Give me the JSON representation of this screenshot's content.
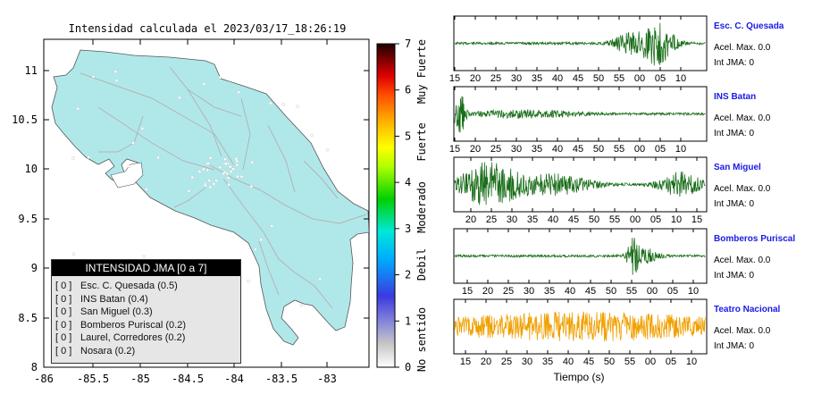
{
  "map": {
    "title": "Intensidad calculada el 2023/03/17_18:26:19",
    "x_ticks": [
      "-86",
      "-85.5",
      "-85",
      "-84.5",
      "-84",
      "-83.5",
      "-83"
    ],
    "y_ticks": [
      "11",
      "10.5",
      "10",
      "9.5",
      "9",
      "8.5",
      "8"
    ],
    "land_color": "#b0e8ea",
    "road_color": "#b3b3b3"
  },
  "colorbar": {
    "ticks": [
      "0",
      "1",
      "2",
      "3",
      "4",
      "5",
      "6",
      "7"
    ],
    "category_labels": [
      "No sentido",
      "Debil",
      "Moderado",
      "Fuerte",
      "Muy Fuerte"
    ]
  },
  "legend": {
    "title": "INTENSIDAD JMA [0 a 7]",
    "rows": [
      {
        "level": "[ 0 ]",
        "text": "Esc. C. Quesada (0.5)"
      },
      {
        "level": "[ 0 ]",
        "text": "INS Batan (0.4)"
      },
      {
        "level": "[ 0 ]",
        "text": "San Miguel (0.3)"
      },
      {
        "level": "[ 0 ]",
        "text": "Bomberos Puriscal (0.2)"
      },
      {
        "level": "[ 0 ]",
        "text": "Laurel, Corredores (0.2)"
      },
      {
        "level": "[ 0 ]",
        "text": "Nosara (0.2)"
      }
    ]
  },
  "waveforms": {
    "xlabel": "Tiempo (s)",
    "panels": [
      {
        "station": "Esc. C. Quesada",
        "acel": "Acel. Max. 0.0",
        "jma": "Int JMA: 0",
        "ticks": [
          "15",
          "20",
          "25",
          "30",
          "35",
          "40",
          "45",
          "50",
          "55",
          "00",
          "05",
          "10"
        ],
        "color": "#1a6e1a"
      },
      {
        "station": "INS Batan",
        "acel": "Acel. Max. 0.0",
        "jma": "Int JMA: 0",
        "ticks": [
          "15",
          "20",
          "25",
          "30",
          "35",
          "40",
          "45",
          "50",
          "55",
          "00",
          "05",
          "10"
        ],
        "color": "#1a6e1a"
      },
      {
        "station": "San Miguel",
        "acel": "Acel. Max. 0.0",
        "jma": "Int JMA: 0",
        "ticks": [
          "20",
          "25",
          "30",
          "35",
          "40",
          "45",
          "50",
          "55",
          "00",
          "05",
          "10",
          "15"
        ],
        "color": "#1a6e1a"
      },
      {
        "station": "Bomberos Puriscal",
        "acel": "Acel. Max. 0.0",
        "jma": "Int JMA: 0",
        "ticks": [
          "15",
          "20",
          "25",
          "30",
          "35",
          "40",
          "45",
          "50",
          "55",
          "00",
          "05",
          "10"
        ],
        "color": "#1a6e1a"
      },
      {
        "station": "Teatro Nacional",
        "acel": "Acel. Max. 0.0",
        "jma": "Int JMA: 0",
        "ticks": [
          "15",
          "20",
          "25",
          "30",
          "35",
          "40",
          "45",
          "50",
          "55",
          "00",
          "05",
          "10"
        ],
        "color": "#f0a000"
      }
    ]
  },
  "chart_data": [
    {
      "type": "map",
      "title": "Intensidad calculada el 2023/03/17_18:26:19",
      "xlim": [
        -86,
        -82.6
      ],
      "ylim": [
        8,
        11.3
      ],
      "x_ticks": [
        -86,
        -85.5,
        -85,
        -84.5,
        -84,
        -83.5,
        -83
      ],
      "y_ticks": [
        11,
        10.5,
        10,
        9.5,
        9,
        8.5,
        8
      ],
      "colorbar": {
        "range": [
          0,
          7
        ],
        "labels": [
          "No sentido",
          "Debil",
          "Moderado",
          "Fuerte",
          "Muy Fuerte"
        ]
      },
      "stations": [
        {
          "name": "Esc. C. Quesada",
          "intensity": 0.5
        },
        {
          "name": "INS Batan",
          "intensity": 0.4
        },
        {
          "name": "San Miguel",
          "intensity": 0.3
        },
        {
          "name": "Bomberos Puriscal",
          "intensity": 0.2
        },
        {
          "name": "Laurel, Corredores",
          "intensity": 0.2
        },
        {
          "name": "Nosara",
          "intensity": 0.2
        }
      ]
    },
    {
      "type": "line",
      "xlabel": "Tiempo (s)",
      "series": [
        {
          "name": "Esc. C. Quesada",
          "peaks": [
            {
              "t": 55,
              "amp": 0.9
            }
          ]
        },
        {
          "name": "INS Batan",
          "peaks": [
            {
              "t": 16,
              "amp": 0.9
            }
          ]
        },
        {
          "name": "San Miguel",
          "peaks": [
            {
              "t": 24,
              "amp": 0.9
            }
          ]
        },
        {
          "name": "Bomberos Puriscal",
          "peaks": [
            {
              "t": 50,
              "amp": 0.9
            }
          ]
        },
        {
          "name": "Teatro Nacional",
          "peaks": [
            {
              "t": 52,
              "amp": 0.6
            }
          ]
        }
      ]
    }
  ]
}
